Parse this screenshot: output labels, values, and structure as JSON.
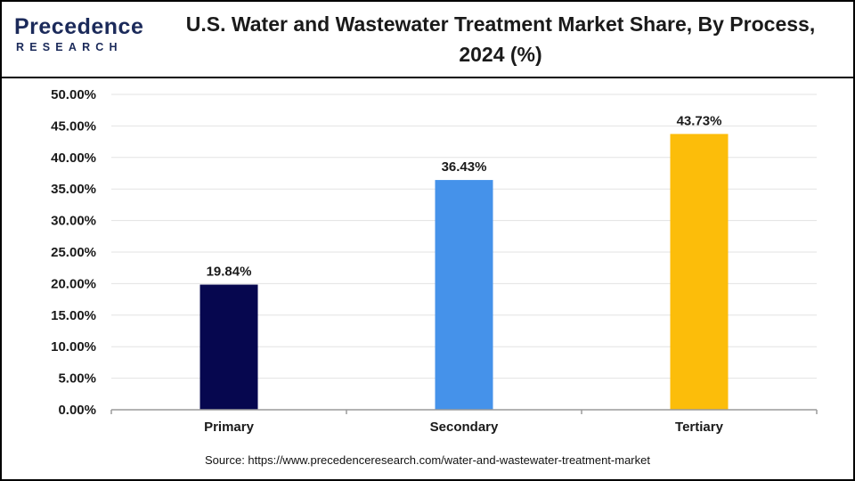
{
  "logo": {
    "name": "Precedence",
    "subtitle": "RESEARCH"
  },
  "title": "U.S. Water and Wastewater Treatment Market Share, By Process, 2024 (%)",
  "source": "Source: https://www.precedenceresearch.com/water-and-wastewater-treatment-market",
  "chart_data": {
    "type": "bar",
    "title": "U.S. Water and Wastewater Treatment Market Share, By Process, 2024 (%)",
    "categories": [
      "Primary",
      "Secondary",
      "Tertiary"
    ],
    "values": [
      19.84,
      36.43,
      43.73
    ],
    "value_labels": [
      "19.84%",
      "36.43%",
      "43.73%"
    ],
    "colors": [
      "#06074f",
      "#4592ea",
      "#fcbd0a"
    ],
    "ylim": [
      0,
      50
    ],
    "yticks": [
      0,
      5,
      10,
      15,
      20,
      25,
      30,
      35,
      40,
      45,
      50
    ],
    "ytick_labels": [
      "0.00%",
      "5.00%",
      "10.00%",
      "15.00%",
      "20.00%",
      "25.00%",
      "30.00%",
      "35.00%",
      "40.00%",
      "45.00%",
      "50.00%"
    ],
    "xlabel": "",
    "ylabel": "",
    "grid": true
  }
}
